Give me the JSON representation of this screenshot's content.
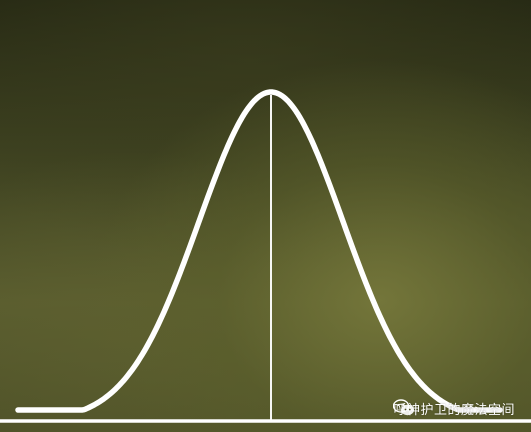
{
  "scene": {
    "description_icon": "chalkboard-bell-curve",
    "chalk_color": "#ffffff",
    "board_color": "#4a4d24"
  },
  "watermark": {
    "icon": "wechat-icon",
    "text": "呼神护卫的魔法空间"
  }
}
